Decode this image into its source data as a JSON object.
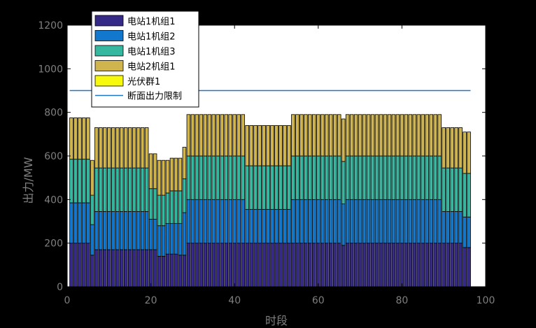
{
  "chart_data": {
    "type": "bar",
    "stacked": true,
    "title": "",
    "xlabel": "时段",
    "ylabel": "出力/MW",
    "xlim": [
      0,
      100
    ],
    "ylim": [
      0,
      1200
    ],
    "xticks": [
      0,
      20,
      40,
      60,
      80,
      100
    ],
    "yticks": [
      0,
      200,
      400,
      600,
      800,
      1000,
      1200
    ],
    "grid": false,
    "legend_position": "top-left",
    "x": [
      1,
      2,
      3,
      4,
      5,
      6,
      7,
      8,
      9,
      10,
      11,
      12,
      13,
      14,
      15,
      16,
      17,
      18,
      19,
      20,
      21,
      22,
      23,
      24,
      25,
      26,
      27,
      28,
      29,
      30,
      31,
      32,
      33,
      34,
      35,
      36,
      37,
      38,
      39,
      40,
      41,
      42,
      43,
      44,
      45,
      46,
      47,
      48,
      49,
      50,
      51,
      52,
      53,
      54,
      55,
      56,
      57,
      58,
      59,
      60,
      61,
      62,
      63,
      64,
      65,
      66,
      67,
      68,
      69,
      70,
      71,
      72,
      73,
      74,
      75,
      76,
      77,
      78,
      79,
      80,
      81,
      82,
      83,
      84,
      85,
      86,
      87,
      88,
      89,
      90,
      91,
      92,
      93,
      94,
      95,
      96
    ],
    "series": [
      {
        "name": "电站1机组1",
        "color": "#352a87",
        "values": [
          200,
          200,
          200,
          200,
          200,
          145,
          170,
          170,
          170,
          170,
          170,
          170,
          170,
          170,
          170,
          170,
          170,
          170,
          170,
          170,
          170,
          140,
          140,
          150,
          150,
          150,
          145,
          145,
          200,
          200,
          200,
          200,
          200,
          200,
          200,
          200,
          200,
          200,
          200,
          200,
          200,
          200,
          200,
          200,
          200,
          200,
          200,
          200,
          200,
          200,
          200,
          200,
          200,
          200,
          200,
          200,
          200,
          200,
          200,
          200,
          200,
          200,
          200,
          200,
          200,
          190,
          200,
          200,
          200,
          200,
          200,
          200,
          200,
          200,
          200,
          200,
          200,
          200,
          200,
          200,
          200,
          200,
          200,
          200,
          200,
          200,
          200,
          200,
          200,
          200,
          200,
          200,
          200,
          200,
          180,
          180
        ]
      },
      {
        "name": "电站1机组2",
        "color": "#1178cd",
        "values": [
          185,
          185,
          185,
          185,
          185,
          140,
          175,
          175,
          175,
          175,
          175,
          175,
          175,
          175,
          175,
          175,
          175,
          175,
          175,
          140,
          140,
          140,
          140,
          140,
          140,
          140,
          145,
          195,
          200,
          200,
          200,
          200,
          200,
          200,
          200,
          200,
          200,
          200,
          200,
          200,
          200,
          200,
          155,
          155,
          155,
          155,
          155,
          155,
          155,
          155,
          155,
          155,
          155,
          200,
          200,
          200,
          200,
          200,
          200,
          200,
          200,
          200,
          200,
          200,
          200,
          190,
          200,
          200,
          200,
          200,
          200,
          200,
          200,
          200,
          200,
          200,
          200,
          200,
          200,
          200,
          200,
          200,
          200,
          200,
          200,
          200,
          200,
          200,
          200,
          145,
          145,
          145,
          145,
          145,
          140,
          140
        ]
      },
      {
        "name": "电站1机组3",
        "color": "#35b7a0",
        "values": [
          200,
          200,
          200,
          200,
          200,
          135,
          200,
          200,
          200,
          200,
          200,
          200,
          200,
          200,
          200,
          200,
          200,
          200,
          200,
          140,
          140,
          140,
          140,
          140,
          150,
          150,
          150,
          155,
          200,
          200,
          200,
          200,
          200,
          200,
          200,
          200,
          200,
          200,
          200,
          200,
          200,
          200,
          200,
          200,
          200,
          200,
          200,
          200,
          200,
          200,
          200,
          200,
          200,
          200,
          200,
          200,
          200,
          200,
          200,
          200,
          200,
          200,
          200,
          200,
          200,
          195,
          200,
          200,
          200,
          200,
          200,
          200,
          200,
          200,
          200,
          200,
          200,
          200,
          200,
          200,
          200,
          200,
          200,
          200,
          200,
          200,
          200,
          200,
          200,
          200,
          200,
          200,
          200,
          200,
          200,
          200
        ]
      },
      {
        "name": "电站2机组1",
        "color": "#d0b44e",
        "values": [
          190,
          190,
          190,
          190,
          190,
          160,
          185,
          185,
          185,
          185,
          185,
          185,
          185,
          185,
          185,
          185,
          185,
          185,
          185,
          160,
          160,
          160,
          160,
          150,
          150,
          150,
          150,
          145,
          190,
          190,
          190,
          190,
          190,
          190,
          190,
          190,
          190,
          190,
          190,
          190,
          190,
          190,
          185,
          185,
          185,
          185,
          185,
          185,
          185,
          185,
          185,
          185,
          185,
          190,
          190,
          190,
          190,
          190,
          190,
          190,
          190,
          190,
          190,
          190,
          190,
          195,
          190,
          190,
          190,
          190,
          190,
          190,
          190,
          190,
          190,
          190,
          190,
          190,
          190,
          190,
          190,
          190,
          190,
          190,
          190,
          190,
          190,
          190,
          190,
          185,
          185,
          185,
          185,
          185,
          190,
          190
        ]
      },
      {
        "name": "光伏群1",
        "color": "#f8fa0d",
        "values": [
          0,
          0,
          0,
          0,
          0,
          0,
          0,
          0,
          0,
          0,
          0,
          0,
          0,
          0,
          0,
          0,
          0,
          0,
          0,
          0,
          0,
          0,
          0,
          0,
          0,
          0,
          0,
          0,
          0,
          0,
          0,
          0,
          0,
          0,
          0,
          0,
          0,
          0,
          0,
          0,
          0,
          0,
          0,
          0,
          0,
          0,
          0,
          0,
          0,
          0,
          0,
          0,
          0,
          0,
          0,
          0,
          0,
          0,
          0,
          0,
          0,
          0,
          0,
          0,
          0,
          0,
          0,
          0,
          0,
          0,
          0,
          0,
          0,
          0,
          0,
          0,
          0,
          0,
          0,
          0,
          0,
          0,
          0,
          0,
          0,
          0,
          0,
          0,
          0,
          0,
          0,
          0,
          0,
          0,
          0,
          0
        ]
      }
    ],
    "limit_line": {
      "name": "断面出力限制",
      "color": "#1f77c4",
      "value": 900
    }
  }
}
